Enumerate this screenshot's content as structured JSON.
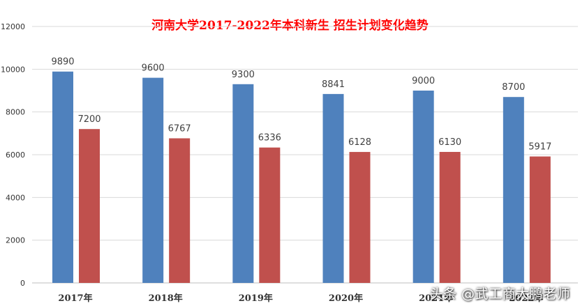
{
  "colors": {
    "series_1": "#4f81bd",
    "series_2": "#c0504d",
    "title": "#ff0000",
    "axis_text": "#333333",
    "gridline": "#d9d9d9"
  },
  "watermark": "头条 @武工商大鹏老师",
  "chart_data": {
    "type": "bar",
    "title": "河南大学2017-2022年本科新生 招生计划变化趋势",
    "xlabel": "",
    "ylabel": "",
    "categories": [
      "2017年",
      "2018年",
      "2019年",
      "2020年",
      "2021年",
      "2022年"
    ],
    "series": [
      {
        "values": [
          9890,
          9600,
          9300,
          8841,
          9000,
          8700
        ]
      },
      {
        "values": [
          7200,
          6767,
          6336,
          6128,
          6130,
          5917
        ]
      }
    ],
    "ylim": [
      0,
      12000
    ],
    "yticks": [
      "0",
      "2000",
      "4000",
      "6000",
      "8000",
      "10000",
      "12000"
    ],
    "grid": true,
    "legend": "none"
  }
}
